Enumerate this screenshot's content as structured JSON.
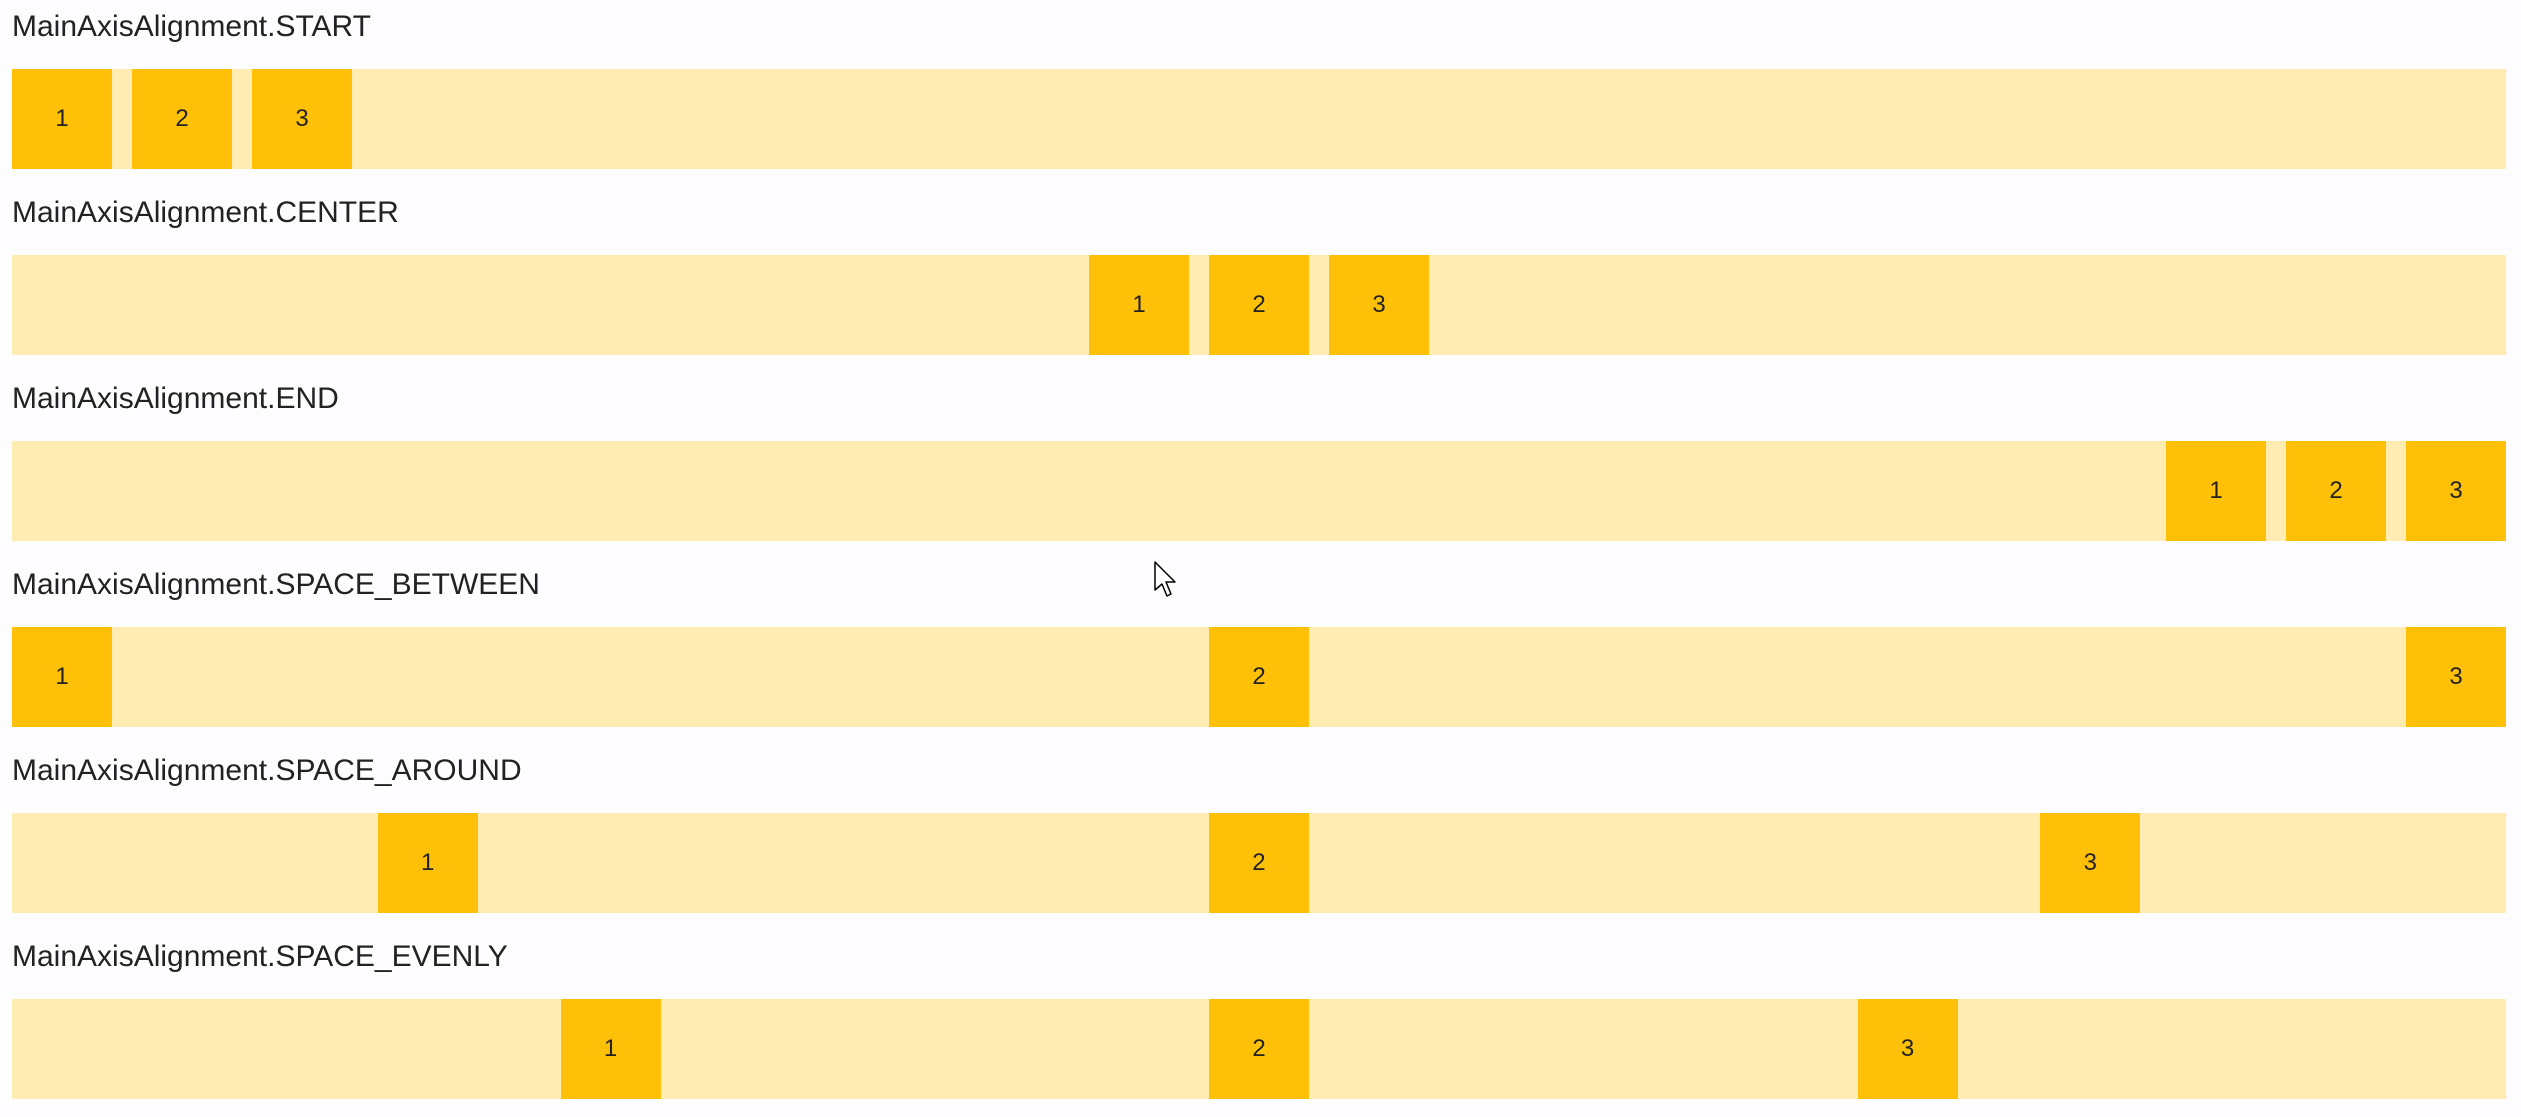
{
  "colors": {
    "container": "#ffecb3",
    "item": "#ffc107"
  },
  "sections": [
    {
      "label": "MainAxisAlignment.START",
      "mode": "start",
      "items": [
        "1",
        "2",
        "3"
      ]
    },
    {
      "label": "MainAxisAlignment.CENTER",
      "mode": "center",
      "items": [
        "1",
        "2",
        "3"
      ]
    },
    {
      "label": "MainAxisAlignment.END",
      "mode": "end",
      "items": [
        "1",
        "2",
        "3"
      ]
    },
    {
      "label": "MainAxisAlignment.SPACE_BETWEEN",
      "mode": "space_between",
      "items": [
        "1",
        "2",
        "3"
      ]
    },
    {
      "label": "MainAxisAlignment.SPACE_AROUND",
      "mode": "space_around",
      "items": [
        "1",
        "2",
        "3"
      ]
    },
    {
      "label": "MainAxisAlignment.SPACE_EVENLY",
      "mode": "space_evenly",
      "items": [
        "1",
        "2",
        "3"
      ]
    }
  ]
}
